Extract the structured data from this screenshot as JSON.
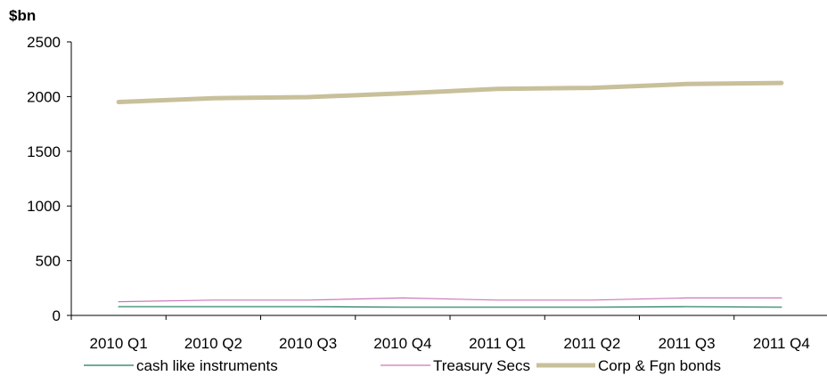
{
  "chart_data": {
    "type": "line",
    "title": "",
    "unit_label": "$bn",
    "xlabel": "",
    "ylabel": "",
    "categories": [
      "2010 Q1",
      "2010 Q2",
      "2010 Q3",
      "2010 Q4",
      "2011 Q1",
      "2011 Q2",
      "2011 Q3",
      "2011 Q4"
    ],
    "ylim": [
      0,
      2500
    ],
    "yticks": [
      0,
      500,
      1000,
      1500,
      2000,
      2500
    ],
    "grid": false,
    "legend_position": "bottom",
    "series": [
      {
        "name": "cash like instruments",
        "color": "#1b7a5a",
        "values": [
          80,
          80,
          80,
          75,
          75,
          75,
          80,
          75
        ]
      },
      {
        "name": "Treasury Secs",
        "color": "#cc77bb",
        "values": [
          125,
          140,
          140,
          160,
          140,
          140,
          160,
          160
        ]
      },
      {
        "name": "Corp & Fgn bonds",
        "color": "#c8c09a",
        "values": [
          1950,
          1985,
          1995,
          2030,
          2070,
          2080,
          2115,
          2125
        ]
      }
    ]
  }
}
